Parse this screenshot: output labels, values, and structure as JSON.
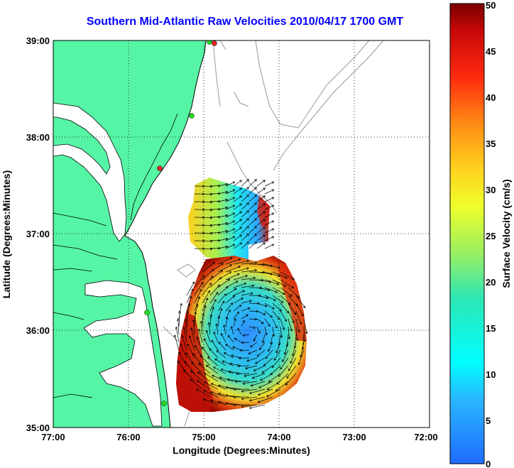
{
  "title": "Southern Mid-Atlantic Raw Velocities 2010/04/17 1700 GMT",
  "map": {
    "xlabel": "Longitude (Degrees:Minutes)",
    "ylabel": "Latitude (Degrees:Minutes)",
    "x_ticks": [
      "77:00",
      "76:00",
      "75:00",
      "74:00",
      "73:00",
      "72:00"
    ],
    "y_ticks": [
      "39:00",
      "38:00",
      "37:00",
      "36:00",
      "35:00"
    ],
    "lon_range": [
      -77,
      -72
    ],
    "lat_range": [
      35,
      39
    ],
    "grid": true,
    "colors": {
      "land": "#55f5a5",
      "coast": "#000000",
      "bathymetry": "#999999",
      "station_green": "#22dd22",
      "station_red": "#ee2222"
    }
  },
  "colorbar": {
    "label": "Surface Velocity (cm/s)",
    "ticks": [
      "0",
      "5",
      "10",
      "15",
      "20",
      "25",
      "30",
      "35",
      "40",
      "45",
      "50"
    ],
    "range": [
      0,
      50
    ]
  }
}
